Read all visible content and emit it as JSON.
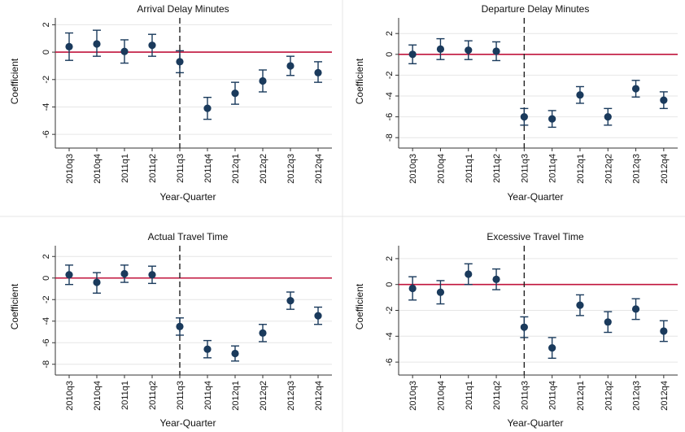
{
  "chart_data": [
    {
      "type": "scatter",
      "title": "Arrival Delay Minutes",
      "xlabel": "Year-Quarter",
      "ylabel": "Coefficient",
      "categories": [
        "2010q3",
        "2010q4",
        "2011q1",
        "2011q2",
        "2011q3",
        "2011q4",
        "2012q1",
        "2012q2",
        "2012q3",
        "2012q4"
      ],
      "ylim": [
        -7,
        2.5
      ],
      "yticks": [
        2,
        0,
        -2,
        -4,
        -6
      ],
      "ytick_labels": [
        "2",
        "0",
        "-2",
        "-4",
        "-6"
      ],
      "values": [
        0.4,
        0.6,
        0.05,
        0.5,
        -0.7,
        -4.1,
        -3.0,
        -2.1,
        -1.0,
        -1.5
      ],
      "ci_low": [
        -0.6,
        -0.3,
        -0.8,
        -0.3,
        -1.5,
        -4.9,
        -3.8,
        -2.9,
        -1.7,
        -2.2
      ],
      "ci_high": [
        1.4,
        1.6,
        0.9,
        1.3,
        0.1,
        -3.3,
        -2.2,
        -1.3,
        -0.3,
        -0.7
      ],
      "reference_line": 0,
      "event_line_category": "2011q3",
      "grid": "horizontal",
      "colors": {
        "marker": "#1a3a5c",
        "reference": "#c0143c",
        "event": "#222222",
        "grid": "#e6e6e6"
      }
    },
    {
      "type": "scatter",
      "title": "Departure Delay Minutes",
      "xlabel": "Year-Quarter",
      "ylabel": "Coefficient",
      "categories": [
        "2010q3",
        "2010q4",
        "2011q1",
        "2011q2",
        "2011q3",
        "2011q4",
        "2012q1",
        "2012q2",
        "2012q3",
        "2012q4"
      ],
      "ylim": [
        -9,
        3.5
      ],
      "yticks": [
        2,
        0,
        -2,
        -4,
        -6,
        -8
      ],
      "ytick_labels": [
        "2",
        "0",
        "-2",
        "-4",
        "-6",
        "-8"
      ],
      "values": [
        0.0,
        0.5,
        0.4,
        0.3,
        -6.0,
        -6.2,
        -3.9,
        -6.0,
        -3.3,
        -4.4
      ],
      "ci_low": [
        -0.9,
        -0.5,
        -0.5,
        -0.6,
        -6.8,
        -7.0,
        -4.7,
        -6.8,
        -4.1,
        -5.2
      ],
      "ci_high": [
        0.9,
        1.5,
        1.3,
        1.2,
        -5.2,
        -5.4,
        -3.1,
        -5.2,
        -2.5,
        -3.6
      ],
      "reference_line": 0,
      "event_line_category": "2011q3",
      "grid": "horizontal",
      "colors": {
        "marker": "#1a3a5c",
        "reference": "#c0143c",
        "event": "#222222",
        "grid": "#e6e6e6"
      }
    },
    {
      "type": "scatter",
      "title": "Actual Travel Time",
      "xlabel": "Year-Quarter",
      "ylabel": "Coefficient",
      "categories": [
        "2010q3",
        "2010q4",
        "2011q1",
        "2011q2",
        "2011q3",
        "2011q4",
        "2012q1",
        "2012q2",
        "2012q3",
        "2012q4"
      ],
      "ylim": [
        -9,
        3
      ],
      "yticks": [
        2,
        0,
        -2,
        -4,
        -6,
        -8
      ],
      "ytick_labels": [
        "2",
        "0",
        "-2",
        "-4",
        "-6",
        "-8"
      ],
      "values": [
        0.3,
        -0.4,
        0.4,
        0.3,
        -4.5,
        -6.6,
        -7.0,
        -5.1,
        -2.1,
        -3.5
      ],
      "ci_low": [
        -0.6,
        -1.4,
        -0.4,
        -0.5,
        -5.3,
        -7.4,
        -7.7,
        -5.9,
        -2.9,
        -4.3
      ],
      "ci_high": [
        1.2,
        0.5,
        1.2,
        1.1,
        -3.7,
        -5.8,
        -6.3,
        -4.3,
        -1.3,
        -2.7
      ],
      "reference_line": 0,
      "event_line_category": "2011q3",
      "grid": "horizontal",
      "colors": {
        "marker": "#1a3a5c",
        "reference": "#c0143c",
        "event": "#222222",
        "grid": "#e6e6e6"
      }
    },
    {
      "type": "scatter",
      "title": "Excessive Travel Time",
      "xlabel": "Year-Quarter",
      "ylabel": "Coefficient",
      "categories": [
        "2010q3",
        "2010q4",
        "2011q1",
        "2011q2",
        "2011q3",
        "2011q4",
        "2012q1",
        "2012q2",
        "2012q3",
        "2012q4"
      ],
      "ylim": [
        -7,
        3
      ],
      "yticks": [
        2,
        0,
        -2,
        -4,
        -6
      ],
      "ytick_labels": [
        "2",
        "0",
        "-2",
        "-4",
        "-6"
      ],
      "values": [
        -0.3,
        -0.6,
        0.8,
        0.4,
        -3.3,
        -4.9,
        -1.6,
        -2.9,
        -1.9,
        -3.6
      ],
      "ci_low": [
        -1.2,
        -1.5,
        0.0,
        -0.4,
        -4.1,
        -5.7,
        -2.4,
        -3.7,
        -2.7,
        -4.4
      ],
      "ci_high": [
        0.6,
        0.3,
        1.6,
        1.2,
        -2.5,
        -4.1,
        -0.8,
        -2.1,
        -1.1,
        -2.8
      ],
      "reference_line": 0,
      "event_line_category": "2011q3",
      "grid": "horizontal",
      "colors": {
        "marker": "#1a3a5c",
        "reference": "#c0143c",
        "event": "#222222",
        "grid": "#e6e6e6"
      }
    }
  ]
}
